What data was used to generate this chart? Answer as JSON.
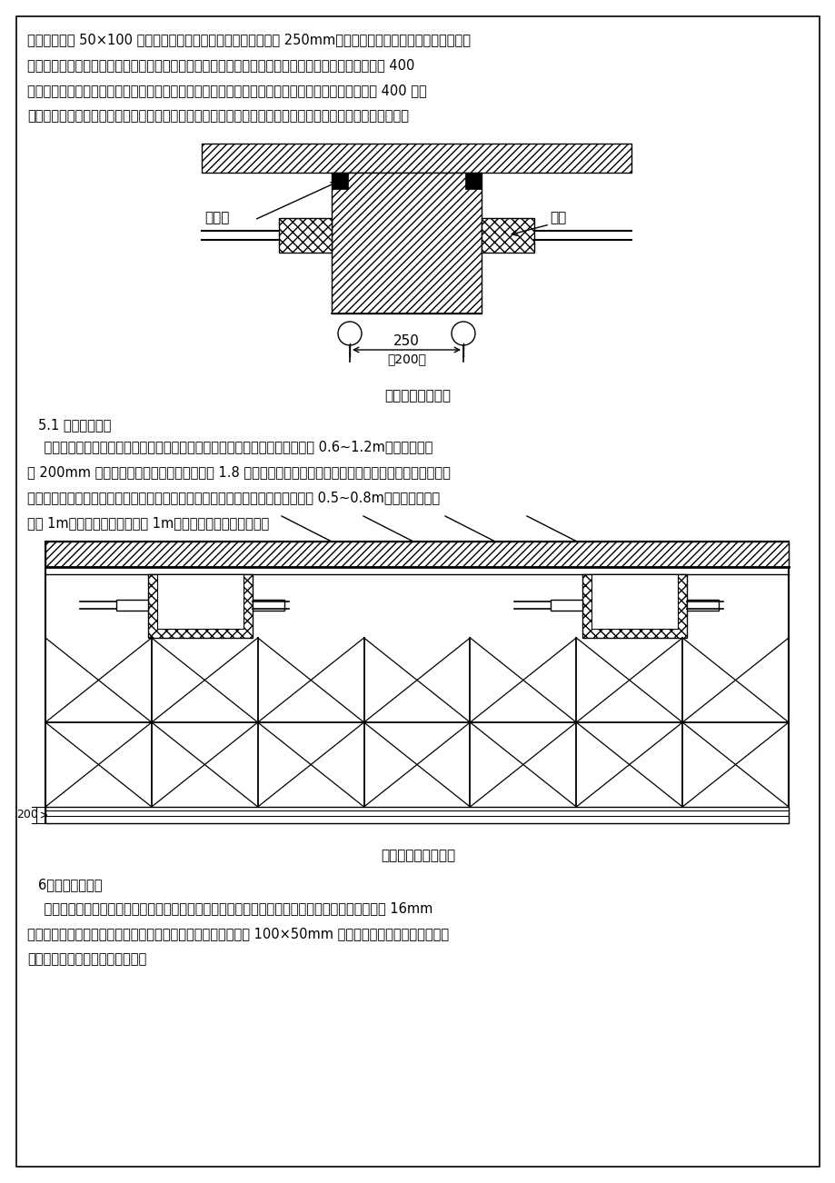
{
  "page_bg": "#ffffff",
  "border_color": "#000000",
  "para1": "板作面板，以 50×100 木枋为龙骨，龙骨间距（中心距）不大于 250mm；模板在加工房内完成后到现场拼装，",
  "para2": "模板接缝处必须进行刨平处理，采取硬拼并贴塑料胶带以防止漏浆。梁模板支设时，当梁截面高度大于 400",
  "para3": "时，先支设梁侧一侧模板，待梁钢筋绑扎完毕验收合格后进行另一侧模板支设。梁截面高度小于等于 400 时，",
  "para4": "先将梁侧模板支设完毕后将梁钢筋用钢管架架空后绑扎，待绑扎完毕后放入模板中。梁板模板支设示意如下：",
  "diagram1_caption": "梁模板支设示意图",
  "section_title": "5.1 模板支撑体系",
  "section_body1": "    模板的支撑体系选用普通钢管扣件满樘架。地下室满樘支撑架立杆纵横间距为 0.6~1.2m，底部距地板",
  "section_body2": "面 200mm 处必须设置扫地杆，纵横杆步距为 1.8 米，满樘模板支架四边与中间每隔四排支架立杆应设置一道",
  "section_body3": "纵向剪刀撑，由底至顶连续设置；剪刀撑的搭设应符合相关要求；梁侧立杆间距为 0.5~0.8m，梁底小横杆间",
  "section_body4": "距为 1m，边梁外侧斜撑间距为 1m，在梁底两侧设置通长杆。",
  "diagram2_caption": "梁板模板支撑示意图",
  "section6_title": "6、楼梯模板施工",
  "section6_body1": "    由于地下室楼梯混凝土同竖向结构混凝土同时浇筑，因此地下室楼梯模板制成半封闭式。模板采用 16mm",
  "section6_body2": "厚双面覆膜九层板支模，用普通钢管架支撑，沿斜坡方向设两道 100×50mm 木枋锁紧踏步板，以保证梯步准",
  "section6_body3": "确、轮廓完整。支模示意图如下。"
}
